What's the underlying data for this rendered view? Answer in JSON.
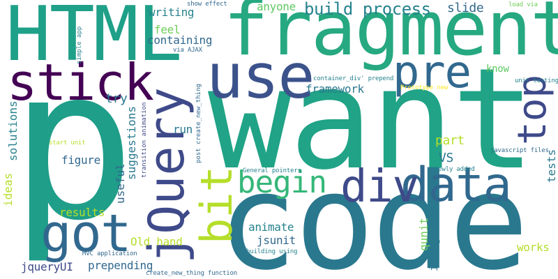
{
  "words": {
    "p": "p",
    "want": "want",
    "code": "code",
    "fragment": "fragment",
    "html": "HTML",
    "jquery": "jQuery",
    "use": "use",
    "stick": "stick",
    "pre": "pre",
    "top": "top",
    "data": "data",
    "div": "div",
    "got": "got",
    "begin": "begin",
    "bit": "bit",
    "build_process": "build process",
    "slide": "slide",
    "anyone": "anyone",
    "writing": "writing",
    "feel": "feel",
    "containing": "containing",
    "framework": "framework",
    "know": "know",
    "try": "try",
    "run": "run",
    "figure": "figure",
    "vs": "VS",
    "part": "part",
    "suggestions": "suggestions",
    "useful": "useful",
    "results": "results",
    "animate": "animate",
    "jsunit": "jsunit",
    "old_hand": "Old hand",
    "prepending": "prepending",
    "jqueryui": "jqueryUI",
    "works": "works",
    "integrate": "integrate",
    "qunit": "qunit",
    "tests": "tests",
    "ideas": "ideas",
    "solutions": "solutions",
    "via_ajax": "via AJAX",
    "simple_app": "simple app",
    "show_effect": "show effect",
    "load_via": "load via",
    "unit_testing": "unit testing",
    "container_div_prepend": "container_div' prepend",
    "prototype_new": "Prototype new",
    "post_create_new_thing": "post create_new_thing",
    "transition_animation": "transition animation",
    "start_unit": "start unit",
    "javascript_files": "javascript files",
    "general_pointers": "General pointers",
    "newly_added": "newly added",
    "mvc_application": "MVC application",
    "building_using": "building using",
    "create_new_thing_function": "create_new_thing function"
  },
  "colors": {
    "background": "#ffffff",
    "teal_green": "#22a884",
    "dark_purple": "#440154",
    "indigo": "#3e4a89",
    "slate_blue": "#31688e",
    "teal": "#26828e",
    "cyan_teal": "#1f9e89",
    "green": "#35b779",
    "light_green": "#6ece58",
    "yellow_green": "#b5de2b",
    "yellow": "#fde725",
    "purple": "#482878"
  }
}
